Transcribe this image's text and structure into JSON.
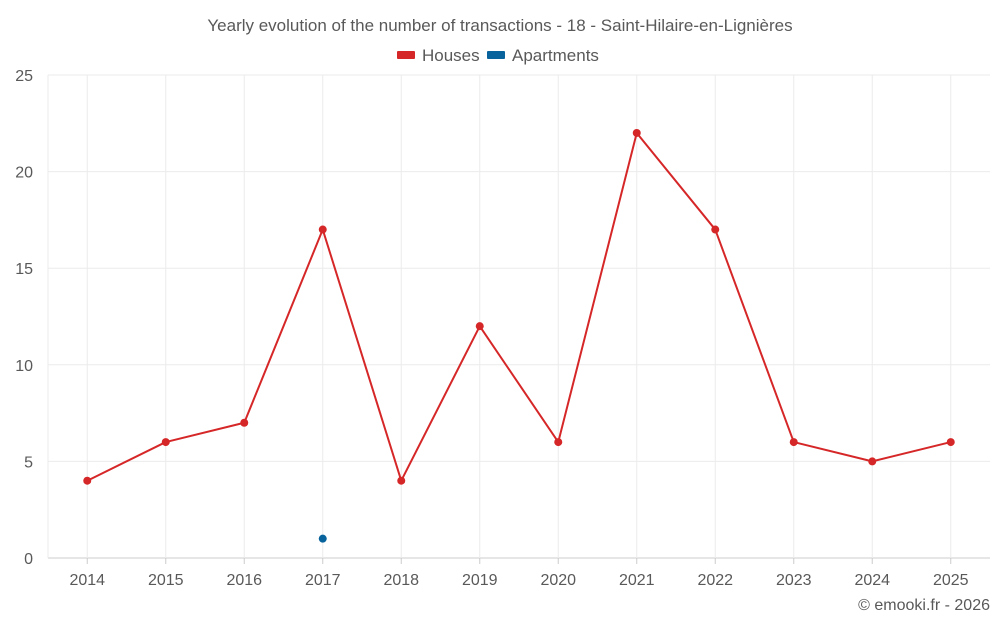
{
  "chart_data": {
    "type": "line",
    "title": "Yearly evolution of the number of transactions - 18 - Saint-Hilaire-en-Lignières",
    "x": [
      "2014",
      "2015",
      "2016",
      "2017",
      "2018",
      "2019",
      "2020",
      "2021",
      "2022",
      "2023",
      "2024",
      "2025"
    ],
    "ylim": [
      0,
      25
    ],
    "yticks": [
      0,
      5,
      10,
      15,
      20,
      25
    ],
    "grid": true,
    "legend_position": "top-center",
    "series": [
      {
        "name": "Houses",
        "color": "#d62728",
        "values": [
          4,
          6,
          7,
          17,
          4,
          12,
          6,
          22,
          17,
          6,
          5,
          6
        ]
      },
      {
        "name": "Apartments",
        "color": "#08639c",
        "values": [
          null,
          null,
          null,
          1,
          null,
          null,
          null,
          null,
          null,
          null,
          null,
          null
        ]
      }
    ]
  },
  "credit": "© emooki.fr - 2026"
}
